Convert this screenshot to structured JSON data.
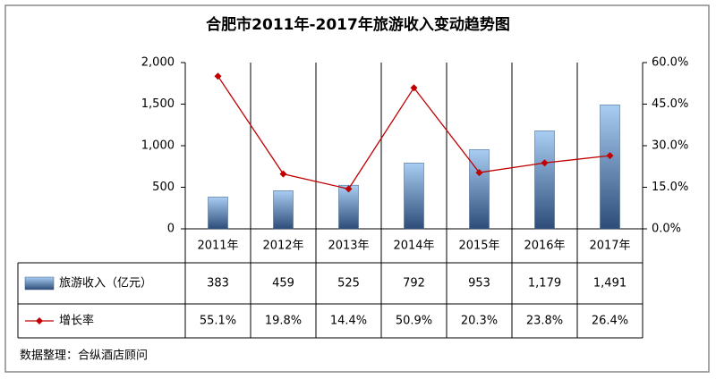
{
  "chart_data": {
    "type": "bar-line",
    "title": "合肥市2011年-2017年旅游收入变动趋势图",
    "source": "数据整理：合纵酒店顾问",
    "categories": [
      "2011年",
      "2012年",
      "2013年",
      "2014年",
      "2015年",
      "2016年",
      "2017年"
    ],
    "series": [
      {
        "name": "旅游收入（亿元）",
        "type": "bar",
        "color": "#6f9fd8",
        "values": [
          383,
          459,
          525,
          792,
          953,
          1179,
          1491
        ],
        "value_labels": [
          "383",
          "459",
          "525",
          "792",
          "953",
          "1,179",
          "1,491"
        ]
      },
      {
        "name": "增长率",
        "type": "line",
        "axis": "y2",
        "color": "#c00000",
        "values": [
          55.1,
          19.8,
          14.4,
          50.9,
          20.3,
          23.8,
          26.4
        ],
        "value_labels": [
          "55.1%",
          "19.8%",
          "14.4%",
          "50.9%",
          "20.3%",
          "23.8%",
          "26.4%"
        ]
      }
    ],
    "ylim": [
      0,
      2000
    ],
    "yticks": [
      0,
      500,
      {
        "value": 1000,
        "label": "1,000"
      },
      {
        "value": 1500,
        "label": "1,500"
      },
      {
        "value": 2000,
        "label": "2,000"
      }
    ],
    "y2lim": [
      0,
      60
    ],
    "y2ticks": [
      {
        "value": 0,
        "label": "0.0%"
      },
      {
        "value": 15,
        "label": "15.0%"
      },
      {
        "value": 30,
        "label": "30.0%"
      },
      {
        "value": 45,
        "label": "45.0%"
      },
      {
        "value": 60,
        "label": "60.0%"
      }
    ],
    "grid": false
  }
}
